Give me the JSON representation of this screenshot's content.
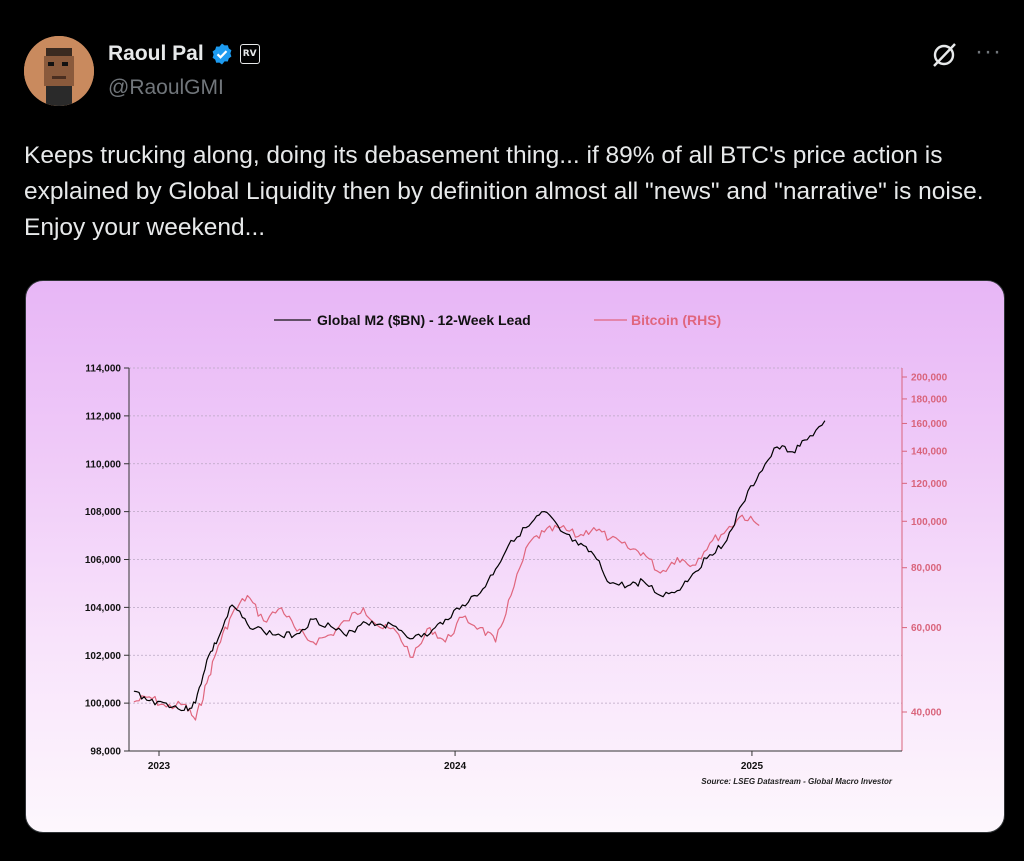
{
  "author": {
    "name": "Raoul Pal",
    "handle": "@RaoulGMI",
    "affiliate_badge": "RV",
    "verified": true
  },
  "icons": [
    "grok-icon",
    "more-icon",
    "verified-badge-icon"
  ],
  "more_label": "···",
  "tweet": {
    "text": "Keeps trucking along, doing its debasement thing... if 89% of all BTC's price action is explained by Global Liquidity then by definition almost all \"news\" and \"narrative\" is noise. Enjoy your weekend..."
  },
  "colors": {
    "m2": "#000000",
    "btc": "#e0667e",
    "card_top": "#e7b6f6",
    "card_bottom": "#fdf7fd"
  },
  "chart_data": {
    "type": "line",
    "legend": {
      "placement": "top-center"
    },
    "series": [
      {
        "name": "Global M2 ($BN) - 12-Week Lead",
        "axis": "left",
        "x": [
          "2022-12-01",
          "2022-12-20",
          "2023-01-10",
          "2023-02-01",
          "2023-02-15",
          "2023-03-01",
          "2023-03-15",
          "2023-04-01",
          "2023-04-20",
          "2023-05-10",
          "2023-06-01",
          "2023-06-20",
          "2023-07-10",
          "2023-08-01",
          "2023-08-20",
          "2023-09-10",
          "2023-10-01",
          "2023-10-20",
          "2023-11-10",
          "2023-12-01",
          "2023-12-20",
          "2024-01-10",
          "2024-02-01",
          "2024-02-20",
          "2024-03-10",
          "2024-04-01",
          "2024-04-20",
          "2024-05-10",
          "2024-06-01",
          "2024-06-20",
          "2024-07-10",
          "2024-08-01",
          "2024-08-20",
          "2024-09-10",
          "2024-10-01",
          "2024-10-20",
          "2024-11-10",
          "2024-12-01",
          "2024-12-20",
          "2025-01-10",
          "2025-02-01",
          "2025-02-20",
          "2025-03-10",
          "2025-04-01"
        ],
        "values": [
          100500,
          100100,
          100000,
          99700,
          100000,
          101800,
          102700,
          104100,
          103300,
          103000,
          102800,
          102900,
          103500,
          103200,
          102800,
          103400,
          103300,
          103200,
          102700,
          102900,
          103500,
          104100,
          104600,
          105600,
          106800,
          107400,
          108000,
          107200,
          106600,
          106200,
          105000,
          104900,
          105100,
          104500,
          104700,
          105400,
          106200,
          106800,
          108300,
          109600,
          110700,
          110500,
          111000,
          111800
        ]
      },
      {
        "name": "Bitcoin (RHS)",
        "axis": "right",
        "x": [
          "2022-12-01",
          "2022-12-20",
          "2023-01-10",
          "2023-02-01",
          "2023-02-15",
          "2023-03-01",
          "2023-03-15",
          "2023-04-01",
          "2023-04-20",
          "2023-05-10",
          "2023-06-01",
          "2023-06-20",
          "2023-07-10",
          "2023-08-01",
          "2023-08-20",
          "2023-09-10",
          "2023-10-01",
          "2023-10-20",
          "2023-11-10",
          "2023-12-01",
          "2023-12-20",
          "2024-01-10",
          "2024-02-01",
          "2024-02-20",
          "2024-03-10",
          "2024-04-01",
          "2024-04-20",
          "2024-05-10",
          "2024-06-01",
          "2024-06-20",
          "2024-07-10",
          "2024-08-01",
          "2024-08-20",
          "2024-09-10",
          "2024-10-01",
          "2024-10-20",
          "2024-11-10",
          "2024-12-01",
          "2024-12-20",
          "2025-01-10"
        ],
        "values": [
          42000,
          43000,
          41000,
          41500,
          38500,
          46000,
          55000,
          64000,
          70000,
          62000,
          66000,
          59000,
          56000,
          58000,
          62000,
          66000,
          60000,
          59000,
          52000,
          60000,
          56000,
          63000,
          60000,
          56000,
          70000,
          90000,
          95000,
          97000,
          93000,
          97000,
          92000,
          88000,
          86000,
          78000,
          84000,
          81000,
          90000,
          96000,
          103000,
          98000
        ]
      }
    ],
    "y_left": {
      "ylim": [
        98000,
        114000
      ],
      "ticks": [
        "98,000",
        "100,000",
        "102,000",
        "104,000",
        "106,000",
        "108,000",
        "110,000",
        "112,000",
        "114,000"
      ]
    },
    "y_right": {
      "scale": "log",
      "ticks": [
        "40,000",
        "60,000",
        "80,000",
        "100,000",
        "120,000",
        "140,000",
        "160,000",
        "180,000",
        "200,000"
      ]
    },
    "x_ticks": [
      "2023",
      "2024",
      "2025"
    ],
    "grid": true,
    "source": "Source: LSEG Datastream - Global Macro Investor"
  }
}
